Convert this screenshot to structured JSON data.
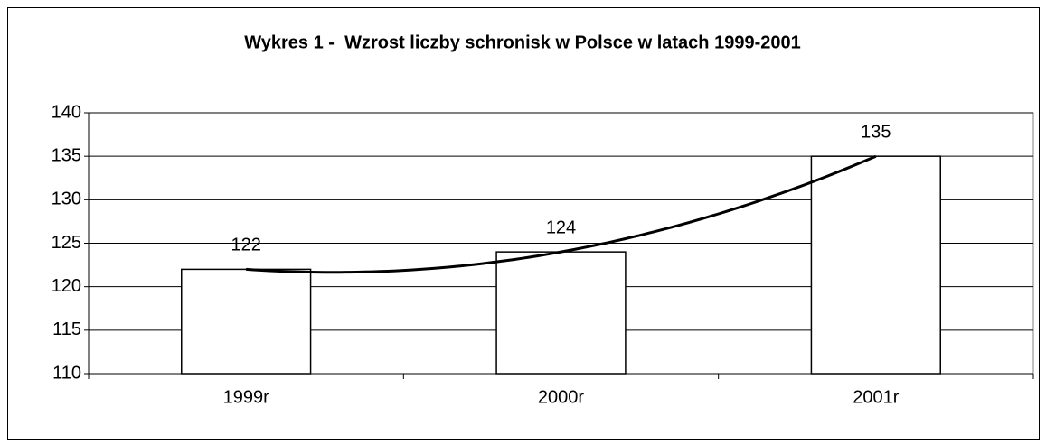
{
  "chart_data": {
    "type": "bar",
    "title": "Wykres 1 -  Wzrost liczby schronisk w Polsce w latach 1999-2001",
    "categories": [
      "1999r",
      "2000r",
      "2001r"
    ],
    "values": [
      122,
      124,
      135
    ],
    "color": "#ffffff",
    "ylim": [
      110,
      140
    ],
    "yticks": [
      110,
      115,
      120,
      125,
      130,
      135,
      140
    ],
    "grid": true,
    "trendline": "polynomial"
  }
}
